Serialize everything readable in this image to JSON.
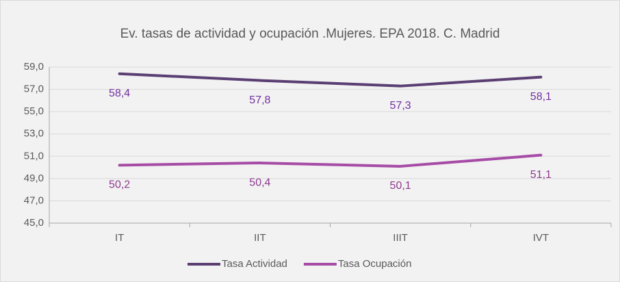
{
  "chart_data": {
    "type": "line",
    "title": "Ev. tasas de actividad y ocupación .Mujeres. EPA 2018. C. Madrid",
    "categories": [
      "IT",
      "IIT",
      "IIIT",
      "IVT"
    ],
    "series": [
      {
        "name": "Tasa Actividad",
        "color": "#5b3f73",
        "label_color": "#7030a0",
        "values": [
          58.4,
          57.8,
          57.3,
          58.1
        ],
        "value_labels": [
          "58,4",
          "57,8",
          "57,3",
          "58,1"
        ]
      },
      {
        "name": "Tasa Ocupación",
        "color": "#a64ca6",
        "label_color": "#8e3a8e",
        "values": [
          50.2,
          50.4,
          50.1,
          51.1
        ],
        "value_labels": [
          "50,2",
          "50,4",
          "50,1",
          "51,1"
        ]
      }
    ],
    "ylim": [
      45,
      59
    ],
    "yticks": [
      {
        "value": 45,
        "label": "45,0"
      },
      {
        "value": 47,
        "label": "47,0"
      },
      {
        "value": 49,
        "label": "49,0"
      },
      {
        "value": 51,
        "label": "51,0"
      },
      {
        "value": 53,
        "label": "53,0"
      },
      {
        "value": 55,
        "label": "55,0"
      },
      {
        "value": 57,
        "label": "57,0"
      },
      {
        "value": 59,
        "label": "59,0"
      }
    ],
    "grid": true,
    "legend": "bottom"
  }
}
